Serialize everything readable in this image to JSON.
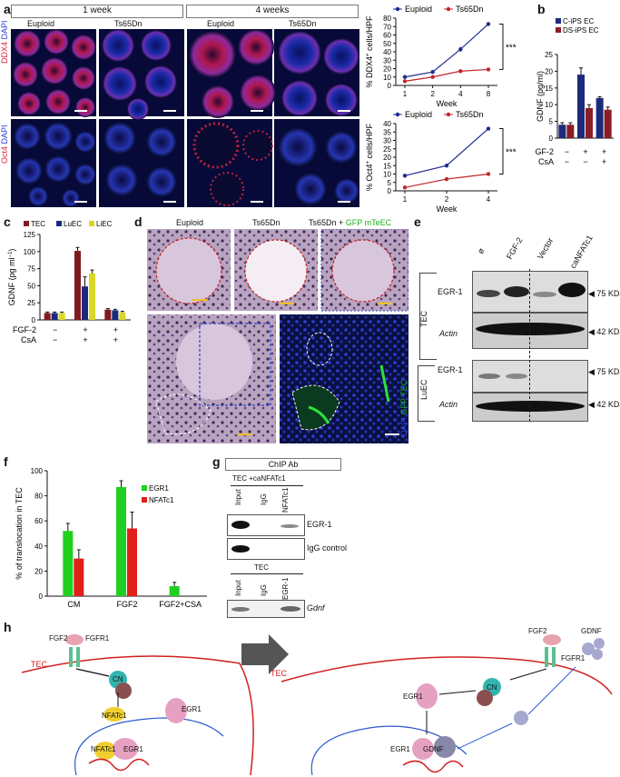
{
  "panels": {
    "a": "a",
    "b": "b",
    "c": "c",
    "d": "d",
    "e": "e",
    "f": "f",
    "g": "g",
    "h": "h"
  },
  "panel_a": {
    "time_headers": [
      "1 week",
      "4 weeks"
    ],
    "column_labels": [
      "Euploid",
      "Ts65Dn",
      "Euploid",
      "Ts65Dn"
    ],
    "row1_stain": {
      "marker": "DDX4",
      "dapi": "DAPI"
    },
    "row2_stain": {
      "marker": "Oct4",
      "dapi": "DAPI"
    },
    "colors": {
      "marker": "#e0243a",
      "dapi": "#2b3fd6"
    }
  },
  "panel_d": {
    "labels": [
      "Euploid",
      "Ts65Dn",
      "Ts65Dn + "
    ],
    "gfp_label": "GFP mTeEC",
    "stain_dapi": "DAPI",
    "stain_gfp": "GFP TEC"
  },
  "panel_e": {
    "lanes": [
      "ø",
      "FGF-2",
      "Vector",
      "caNFATc1"
    ],
    "tec": {
      "group": "TEC",
      "rows": [
        "EGR-1",
        "Actin"
      ],
      "sizes": [
        "75 KDa",
        "42 KDa"
      ]
    },
    "luec": {
      "group": "LuEC",
      "rows": [
        "EGR-1",
        "Actin"
      ],
      "sizes": [
        "75 KDa",
        "42 KDa"
      ]
    }
  },
  "panel_g": {
    "header": "ChIP Ab",
    "top_condition": "TEC +caNFATc1",
    "top_lanes": [
      "Input",
      "IgG",
      "NFATc1"
    ],
    "top_rows": [
      "EGR-1",
      "IgG control"
    ],
    "bottom_condition": "TEC",
    "bottom_lanes": [
      "Input",
      "IgG",
      "EGR-1"
    ],
    "bottom_row": "Gdnf"
  },
  "panel_h": {
    "left": {
      "fgf2": "FGF2",
      "fgfr1": "FGFR1",
      "tec": "TEC",
      "cn": "CN",
      "nfatc1": "NFATc1",
      "egr1": "EGR1",
      "nfatc1_dna": "NFATc1",
      "egr1_dna": "EGR1"
    },
    "right": {
      "fgf2": "FGF2",
      "gdnf": "GDNF",
      "fgfr1": "FGFR1",
      "tec": "TEC",
      "cn": "CN",
      "egr1": "EGR1",
      "egr1_dna": "EGR1",
      "gdnf_dna": "GDNF"
    }
  },
  "chart_data": [
    {
      "id": "a-top",
      "type": "line",
      "legend": [
        "Euploid",
        "Ts65Dn"
      ],
      "ylabel": "% DDX4+ cells/HPF",
      "ylabel_sup": "+",
      "xlabel": "Week",
      "x": [
        "1",
        "2",
        "4",
        "8"
      ],
      "ylim": [
        0,
        80
      ],
      "yticks": [
        0,
        10,
        20,
        30,
        40,
        50,
        60,
        70,
        80
      ],
      "series": [
        {
          "name": "Euploid",
          "color": "#1f2a8f",
          "values": [
            10,
            16,
            43,
            73
          ],
          "err": [
            1,
            1,
            3,
            2
          ]
        },
        {
          "name": "Ts65Dn",
          "color": "#c0242b",
          "values": [
            5,
            10,
            17,
            19
          ],
          "err": [
            1,
            1,
            2,
            2
          ]
        }
      ],
      "significance": "***"
    },
    {
      "id": "a-bottom",
      "type": "line",
      "legend": [
        "Euploid",
        "Ts65Dn"
      ],
      "ylabel": "% Oct4+ cells/HPF",
      "ylabel_sup": "+",
      "xlabel": "Week",
      "x": [
        "1",
        "2",
        "4"
      ],
      "ylim": [
        0,
        40
      ],
      "yticks": [
        0,
        5,
        10,
        15,
        20,
        25,
        30,
        35,
        40
      ],
      "series": [
        {
          "name": "Euploid",
          "color": "#1f2a8f",
          "values": [
            9,
            15,
            37
          ],
          "err": [
            1,
            1,
            1
          ]
        },
        {
          "name": "Ts65Dn",
          "color": "#c0242b",
          "values": [
            2,
            7,
            10
          ],
          "err": [
            1,
            0.5,
            1
          ]
        }
      ],
      "significance": "***"
    },
    {
      "id": "b",
      "type": "bar",
      "legend": [
        "C-iPS EC",
        "DS-iPS EC"
      ],
      "ylabel": "GDNF (pg/ml)",
      "ylim": [
        0,
        25
      ],
      "yticks": [
        0,
        5,
        10,
        15,
        20,
        25
      ],
      "factor_rows": [
        {
          "name": "FGF-2",
          "marks": [
            "−",
            "+",
            "+"
          ]
        },
        {
          "name": "CsA",
          "marks": [
            "−",
            "−",
            "+"
          ]
        }
      ],
      "series": [
        {
          "name": "C-iPS EC",
          "color": "#1c2a7a",
          "values": [
            4,
            19,
            12
          ],
          "err": [
            0.6,
            2,
            0.4
          ]
        },
        {
          "name": "DS-iPS EC",
          "color": "#8b1d25",
          "values": [
            4,
            9,
            8.5
          ],
          "err": [
            0.6,
            1,
            0.8
          ]
        }
      ]
    },
    {
      "id": "c",
      "type": "bar",
      "legend": [
        "TEC",
        "LuEC",
        "LiEC"
      ],
      "ylabel": "GDNF (pg ml",
      "ylabel_sup": "−1",
      "ylabel_end": ")",
      "ylim": [
        0,
        125
      ],
      "yticks": [
        0,
        25,
        50,
        75,
        100,
        125
      ],
      "factor_rows": [
        {
          "name": "FGF-2",
          "marks": [
            "−",
            "+",
            "+"
          ]
        },
        {
          "name": "CsA",
          "marks": [
            "−",
            "+",
            "+"
          ]
        }
      ],
      "series": [
        {
          "name": "TEC",
          "color": "#7e1a1e",
          "values": [
            10,
            101,
            15
          ],
          "err": [
            1.5,
            5,
            1.5
          ]
        },
        {
          "name": "LuEC",
          "color": "#1c2a7a",
          "values": [
            10,
            49,
            14
          ],
          "err": [
            1.5,
            14,
            1.5
          ]
        },
        {
          "name": "LiEC",
          "color": "#d8d826",
          "values": [
            10,
            68,
            11
          ],
          "err": [
            1.5,
            5,
            1.5
          ]
        }
      ]
    },
    {
      "id": "f",
      "type": "bar",
      "legend": [
        "EGR1",
        "NFATc1"
      ],
      "ylabel": "% of translocation in TEC",
      "ylim": [
        0,
        100
      ],
      "yticks": [
        0,
        20,
        40,
        60,
        80,
        100
      ],
      "categories": [
        "CM",
        "FGF2",
        "FGF2+CSA"
      ],
      "series": [
        {
          "name": "EGR1",
          "color": "#1fd01f",
          "values": [
            52,
            87,
            8
          ],
          "err": [
            6,
            5,
            3
          ]
        },
        {
          "name": "NFATc1",
          "color": "#e0201c",
          "values": [
            30,
            54,
            0
          ],
          "err": [
            7,
            13,
            0
          ]
        }
      ]
    }
  ]
}
